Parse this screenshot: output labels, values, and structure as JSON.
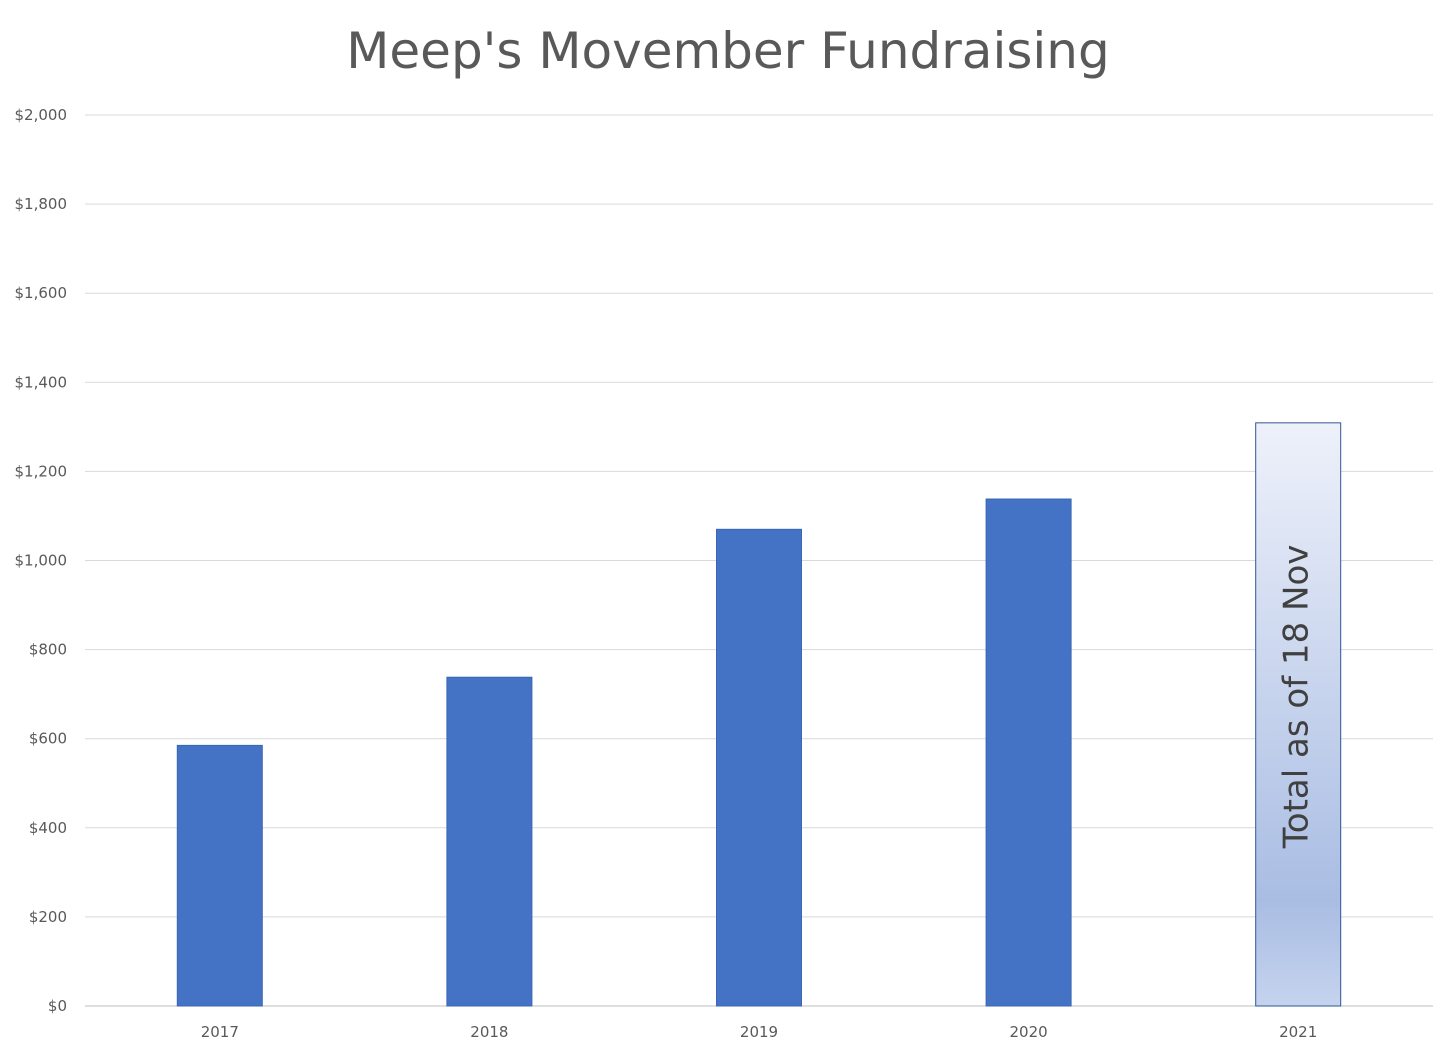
{
  "chart_data": {
    "type": "bar",
    "title": "Meep's Movember Fundraising",
    "xlabel": "",
    "ylabel": "",
    "categories": [
      "2017",
      "2018",
      "2019",
      "2020",
      "2021"
    ],
    "values": [
      585,
      738,
      1070,
      1138,
      1309
    ],
    "ylim": [
      0,
      2000
    ],
    "yticks": [
      0,
      200,
      400,
      600,
      800,
      1000,
      1200,
      1400,
      1600,
      1800,
      2000
    ],
    "ytick_labels": [
      "$0",
      "$200",
      "$400",
      "$600",
      "$800",
      "$1,000",
      "$1,200",
      "$1,400",
      "$1,600",
      "$1,800",
      "$2,000"
    ],
    "grid": true,
    "legend": "none",
    "annotations": [
      {
        "category": "2021",
        "text": "Total as of 18 Nov"
      }
    ],
    "colors": {
      "bar": "#4472c4",
      "highlight_top": "#eef1fa",
      "highlight_bottom": "#a9bde3",
      "highlight_border": "#2f5597",
      "grid": "#d9d9d9",
      "text": "#595959"
    }
  }
}
